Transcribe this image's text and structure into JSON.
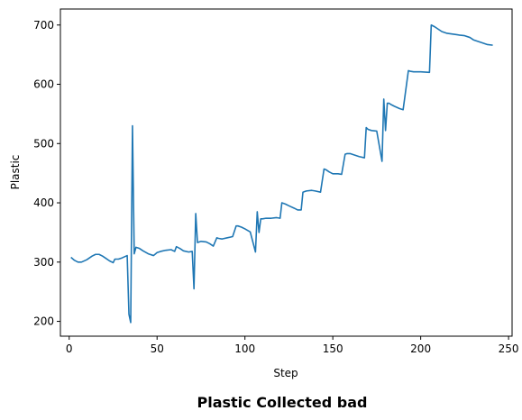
{
  "chart_data": {
    "type": "line",
    "title": "Plastic Collected bad",
    "xlabel": "Step",
    "ylabel": "Plastic",
    "xlim": [
      -5,
      252
    ],
    "ylim": [
      175,
      727
    ],
    "xticks": [
      0,
      50,
      100,
      150,
      200,
      250
    ],
    "yticks": [
      200,
      300,
      400,
      500,
      600,
      700
    ],
    "grid": false,
    "legend": "none",
    "series_color": "#1f77b4",
    "series": [
      {
        "x": [
          1,
          3,
          5,
          7,
          10,
          13,
          15,
          17,
          19,
          21,
          23,
          25,
          26,
          28,
          30,
          33,
          34,
          35,
          36,
          37,
          38,
          40,
          42,
          45,
          48,
          50,
          52,
          55,
          58,
          60,
          61,
          63,
          65,
          68,
          70,
          71,
          72,
          73,
          75,
          78,
          80,
          82,
          84,
          85,
          87,
          90,
          93,
          95,
          96,
          98,
          100,
          103,
          106,
          107,
          108,
          109,
          110,
          112,
          115,
          118,
          120,
          121,
          123,
          125,
          128,
          130,
          132,
          133,
          134,
          135,
          138,
          140,
          143,
          145,
          146,
          148,
          150,
          153,
          155,
          157,
          158,
          160,
          165,
          168,
          169,
          170,
          172,
          175,
          178,
          179,
          180,
          181,
          182,
          183,
          185,
          188,
          190,
          193,
          194,
          196,
          198,
          200,
          205,
          206,
          208,
          210,
          212,
          215,
          220,
          222,
          225,
          228,
          230,
          235,
          238,
          241
        ],
        "y": [
          308,
          303,
          300,
          300,
          304,
          310,
          313,
          313,
          310,
          306,
          302,
          299,
          305,
          305,
          307,
          311,
          212,
          198,
          530,
          314,
          325,
          323,
          319,
          314,
          311,
          316,
          318,
          320,
          321,
          318,
          326,
          323,
          319,
          317,
          318,
          255,
          382,
          333,
          335,
          334,
          331,
          327,
          341,
          340,
          339,
          341,
          343,
          361,
          361,
          359,
          356,
          351,
          317,
          385,
          350,
          373,
          373,
          374,
          374,
          375,
          374,
          400,
          398,
          395,
          391,
          388,
          388,
          418,
          419,
          420,
          421,
          420,
          418,
          457,
          456,
          452,
          449,
          449,
          448,
          482,
          483,
          483,
          478,
          476,
          527,
          524,
          522,
          521,
          470,
          575,
          522,
          568,
          568,
          566,
          563,
          559,
          557,
          623,
          622,
          621,
          621,
          621,
          620,
          700,
          697,
          693,
          689,
          686,
          684,
          683,
          682,
          679,
          675,
          670,
          667,
          666
        ]
      }
    ]
  }
}
